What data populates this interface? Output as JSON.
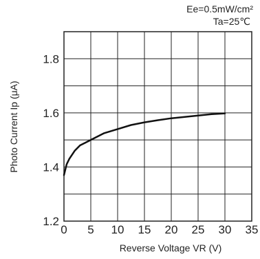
{
  "conditions": {
    "line1": "Ee=0.5mW/cm²",
    "line2": "Ta=25℃"
  },
  "chart_data": {
    "type": "line",
    "xlabel": "Reverse Voltage  VR (V)",
    "ylabel": "Photo Current Ip  (μA)",
    "xlim": [
      0,
      35
    ],
    "ylim": [
      1.2,
      1.9
    ],
    "xticks": [
      0,
      5,
      10,
      15,
      20,
      25,
      30,
      35
    ],
    "yticks": [
      1.2,
      1.4,
      1.6,
      1.8
    ],
    "ytick_labels": [
      "1.2",
      "1.4",
      "1.6",
      "1.8"
    ],
    "grid": true,
    "x_grid_step": 5,
    "y_grid_step": 0.1,
    "series": [
      {
        "x": [
          0,
          0.5,
          1,
          2,
          3,
          4,
          5,
          7.5,
          10,
          12.5,
          15,
          17.5,
          20,
          22.5,
          25,
          27.5,
          30
        ],
        "y": [
          1.37,
          1.41,
          1.43,
          1.46,
          1.48,
          1.49,
          1.5,
          1.525,
          1.54,
          1.555,
          1.565,
          1.573,
          1.58,
          1.585,
          1.59,
          1.595,
          1.598
        ]
      }
    ]
  }
}
